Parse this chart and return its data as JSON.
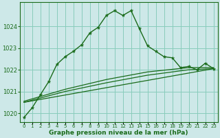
{
  "bg_color": "#cde8e8",
  "grid_color": "#88ccbb",
  "line_color": "#1a6b1a",
  "title": "Graphe pression niveau de la mer (hPa)",
  "xlim": [
    -0.5,
    23.5
  ],
  "ylim": [
    1019.6,
    1025.1
  ],
  "yticks": [
    1020,
    1021,
    1022,
    1023,
    1024
  ],
  "xticks": [
    0,
    1,
    2,
    3,
    4,
    5,
    6,
    7,
    8,
    9,
    10,
    11,
    12,
    13,
    14,
    15,
    16,
    17,
    18,
    19,
    20,
    21,
    22,
    23
  ],
  "series1_x": [
    0,
    1,
    2,
    3,
    4,
    5,
    6,
    7,
    8,
    9,
    10,
    11,
    12,
    13,
    14,
    15,
    16,
    17,
    18,
    19,
    20,
    21,
    22,
    23
  ],
  "series1_y": [
    1019.8,
    1020.25,
    1020.85,
    1021.45,
    1022.25,
    1022.6,
    1022.85,
    1023.15,
    1023.7,
    1023.95,
    1024.5,
    1024.72,
    1024.5,
    1024.72,
    1023.9,
    1023.1,
    1022.85,
    1022.6,
    1022.55,
    1022.1,
    1022.15,
    1022.0,
    1022.3,
    1022.05
  ],
  "series2_x": [
    0,
    5,
    10,
    15,
    20,
    23
  ],
  "series2_y": [
    1020.5,
    1021.0,
    1021.4,
    1021.75,
    1022.0,
    1022.05
  ],
  "series3_x": [
    0,
    5,
    10,
    15,
    20,
    23
  ],
  "series3_y": [
    1020.55,
    1021.1,
    1021.55,
    1021.9,
    1022.1,
    1022.1
  ],
  "series4_x": [
    0,
    23
  ],
  "series4_y": [
    1020.5,
    1022.05
  ]
}
